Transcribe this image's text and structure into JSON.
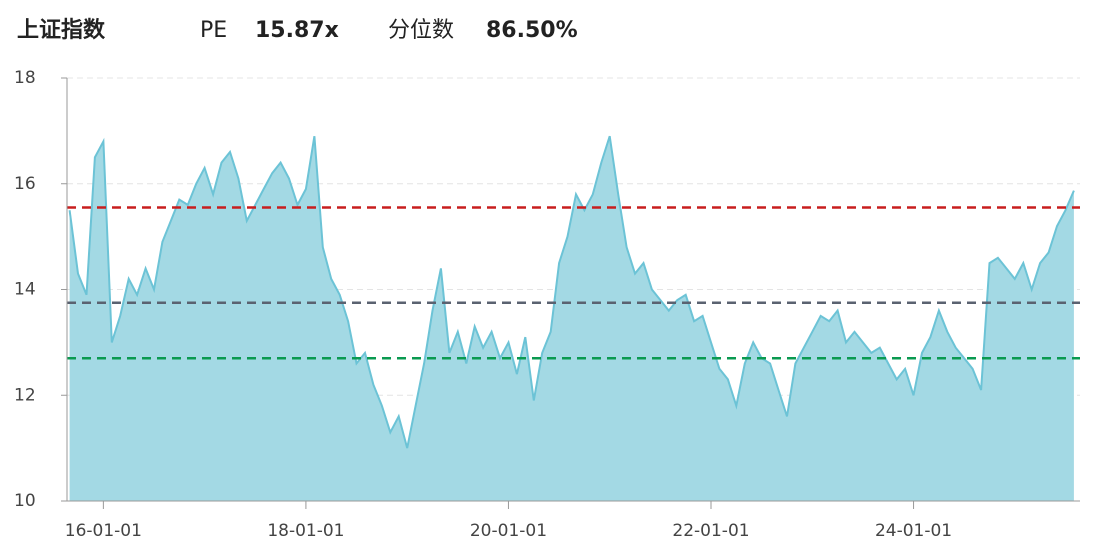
{
  "chart_data": {
    "type": "area",
    "title": "上证指数",
    "stats": [
      {
        "label": "PE",
        "value": "15.87x"
      },
      {
        "label": "分位数",
        "value": "86.50%"
      }
    ],
    "x": [
      "15-09-01",
      "15-10-01",
      "15-11-01",
      "15-12-01",
      "16-01-01",
      "16-02-01",
      "16-03-01",
      "16-04-01",
      "16-05-01",
      "16-06-01",
      "16-07-01",
      "16-08-01",
      "16-09-01",
      "16-10-01",
      "16-11-01",
      "16-12-01",
      "17-01-01",
      "17-02-01",
      "17-03-01",
      "17-04-01",
      "17-05-01",
      "17-06-01",
      "17-07-01",
      "17-08-01",
      "17-09-01",
      "17-10-01",
      "17-11-01",
      "17-12-01",
      "18-01-01",
      "18-02-01",
      "18-03-01",
      "18-04-01",
      "18-05-01",
      "18-06-01",
      "18-07-01",
      "18-08-01",
      "18-09-01",
      "18-10-01",
      "18-11-01",
      "18-12-01",
      "19-01-01",
      "19-02-01",
      "19-03-01",
      "19-04-01",
      "19-05-01",
      "19-06-01",
      "19-07-01",
      "19-08-01",
      "19-09-01",
      "19-10-01",
      "19-11-01",
      "19-12-01",
      "20-01-01",
      "20-02-01",
      "20-03-01",
      "20-04-01",
      "20-05-01",
      "20-06-01",
      "20-07-01",
      "20-08-01",
      "20-09-01",
      "20-10-01",
      "20-11-01",
      "20-12-01",
      "21-01-01",
      "21-02-01",
      "21-03-01",
      "21-04-01",
      "21-05-01",
      "21-06-01",
      "21-07-01",
      "21-08-01",
      "21-09-01",
      "21-10-01",
      "21-11-01",
      "21-12-01",
      "22-01-01",
      "22-02-01",
      "22-03-01",
      "22-04-01",
      "22-05-01",
      "22-06-01",
      "22-07-01",
      "22-08-01",
      "22-09-01",
      "22-10-01",
      "22-11-01",
      "22-12-01",
      "23-01-01",
      "23-02-01",
      "23-03-01",
      "23-04-01",
      "23-05-01",
      "23-06-01",
      "23-07-01",
      "23-08-01",
      "23-09-01",
      "23-10-01",
      "23-11-01",
      "23-12-01",
      "24-01-01",
      "24-02-01",
      "24-03-01",
      "24-04-01",
      "24-05-01",
      "24-06-01",
      "24-07-01",
      "24-08-01",
      "24-09-01",
      "24-10-01",
      "24-11-01",
      "24-12-01",
      "25-01-01",
      "25-02-01",
      "25-03-01",
      "25-04-01",
      "25-05-01",
      "25-06-01",
      "25-07-01",
      "25-08-01"
    ],
    "values": [
      15.5,
      14.3,
      13.9,
      16.5,
      16.8,
      13.0,
      13.5,
      14.2,
      13.9,
      14.4,
      14.0,
      14.9,
      15.3,
      15.7,
      15.6,
      16.0,
      16.3,
      15.8,
      16.4,
      16.6,
      16.1,
      15.3,
      15.6,
      15.9,
      16.2,
      16.4,
      16.1,
      15.6,
      15.9,
      16.9,
      14.8,
      14.2,
      13.9,
      13.4,
      12.6,
      12.8,
      12.2,
      11.8,
      11.3,
      11.6,
      11.0,
      11.8,
      12.6,
      13.6,
      14.4,
      12.8,
      13.2,
      12.6,
      13.3,
      12.9,
      13.2,
      12.7,
      13.0,
      12.4,
      13.1,
      11.9,
      12.8,
      13.2,
      14.5,
      15.0,
      15.8,
      15.5,
      15.8,
      16.4,
      16.9,
      15.8,
      14.8,
      14.3,
      14.5,
      14.0,
      13.8,
      13.6,
      13.8,
      13.9,
      13.4,
      13.5,
      13.0,
      12.5,
      12.3,
      11.8,
      12.6,
      13.0,
      12.7,
      12.6,
      12.1,
      11.6,
      12.6,
      12.9,
      13.2,
      13.5,
      13.4,
      13.6,
      13.0,
      13.2,
      13.0,
      12.8,
      12.9,
      12.6,
      12.3,
      12.5,
      12.0,
      12.8,
      13.1,
      13.6,
      13.2,
      12.9,
      12.7,
      12.5,
      12.1,
      14.5,
      14.6,
      14.4,
      14.2,
      14.5,
      14.0,
      14.5,
      14.7,
      15.2,
      15.5,
      15.87
    ],
    "color": "#6cc3d6",
    "fill_color": "#a3d9e4",
    "xlim": [
      "15-08-22",
      "25-08-23"
    ],
    "xticks": [
      "16-01-01",
      "18-01-01",
      "20-01-01",
      "22-01-01",
      "24-01-01"
    ],
    "ylim": [
      10,
      18
    ],
    "yticks": [
      10,
      12,
      14,
      16,
      18
    ],
    "grid": true,
    "reference_lines": [
      {
        "value": 15.55,
        "color": "#c81e1e"
      },
      {
        "value": 13.75,
        "color": "#5a6270"
      },
      {
        "value": 12.7,
        "color": "#0a9a50"
      }
    ]
  }
}
